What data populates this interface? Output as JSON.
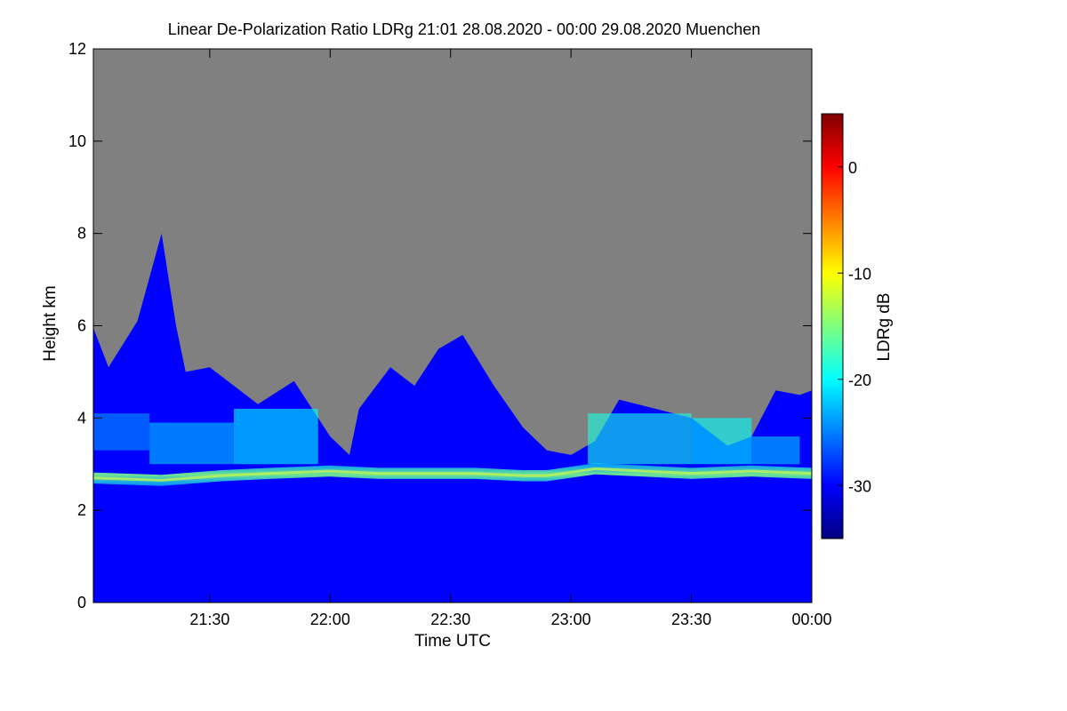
{
  "chart_data": {
    "type": "heatmap",
    "title": "Linear De-Polarization Ratio LDRg   21:01 28.08.2020 - 00:00 29.08.2020 Muenchen",
    "xlabel": "Time UTC",
    "ylabel": "Height km",
    "x_range_hours": [
      21.0167,
      24.0
    ],
    "y_range_km": [
      0,
      12
    ],
    "x_ticks": [
      {
        "hour": 21.5,
        "label": "21:30"
      },
      {
        "hour": 22.0,
        "label": "22:00"
      },
      {
        "hour": 22.5,
        "label": "22:30"
      },
      {
        "hour": 23.0,
        "label": "23:00"
      },
      {
        "hour": 23.5,
        "label": "23:30"
      },
      {
        "hour": 24.0,
        "label": "00:00"
      }
    ],
    "y_ticks": [
      {
        "value": 0,
        "label": "0"
      },
      {
        "value": 2,
        "label": "2"
      },
      {
        "value": 4,
        "label": "4"
      },
      {
        "value": 6,
        "label": "6"
      },
      {
        "value": 8,
        "label": "8"
      },
      {
        "value": 10,
        "label": "10"
      },
      {
        "value": 12,
        "label": "12"
      }
    ],
    "colorbar": {
      "label": "LDRg dB",
      "range_db": [
        -35,
        5
      ],
      "ticks": [
        {
          "value": 0,
          "label": "0"
        },
        {
          "value": -10,
          "label": "-10"
        },
        {
          "value": -20,
          "label": "-20"
        },
        {
          "value": -30,
          "label": "-30"
        }
      ],
      "colors": [
        "#00007f",
        "#0000ff",
        "#007fff",
        "#00ffff",
        "#7fff7f",
        "#ffff00",
        "#ff7f00",
        "#ff0000",
        "#7f0000"
      ]
    },
    "no_data_color": "#808080",
    "background_ldr_db": -30,
    "layer_ldr_db": -16,
    "cloud_top_km": [
      {
        "hour": 21.0167,
        "km": 5.95
      },
      {
        "hour": 21.08,
        "km": 5.1
      },
      {
        "hour": 21.2,
        "km": 6.1
      },
      {
        "hour": 21.3,
        "km": 8.0
      },
      {
        "hour": 21.36,
        "km": 6.0
      },
      {
        "hour": 21.4,
        "km": 5.0
      },
      {
        "hour": 21.5,
        "km": 5.1
      },
      {
        "hour": 21.6,
        "km": 4.7
      },
      {
        "hour": 21.7,
        "km": 4.3
      },
      {
        "hour": 21.85,
        "km": 4.8
      },
      {
        "hour": 22.0,
        "km": 3.6
      },
      {
        "hour": 22.08,
        "km": 3.2
      },
      {
        "hour": 22.12,
        "km": 4.2
      },
      {
        "hour": 22.25,
        "km": 5.1
      },
      {
        "hour": 22.35,
        "km": 4.7
      },
      {
        "hour": 22.45,
        "km": 5.5
      },
      {
        "hour": 22.55,
        "km": 5.8
      },
      {
        "hour": 22.68,
        "km": 4.7
      },
      {
        "hour": 22.8,
        "km": 3.8
      },
      {
        "hour": 22.9,
        "km": 3.3
      },
      {
        "hour": 23.0,
        "km": 3.2
      },
      {
        "hour": 23.1,
        "km": 3.5
      },
      {
        "hour": 23.2,
        "km": 4.4
      },
      {
        "hour": 23.35,
        "km": 4.2
      },
      {
        "hour": 23.5,
        "km": 4.0
      },
      {
        "hour": 23.65,
        "km": 3.4
      },
      {
        "hour": 23.75,
        "km": 3.6
      },
      {
        "hour": 23.85,
        "km": 4.6
      },
      {
        "hour": 23.95,
        "km": 4.5
      },
      {
        "hour": 24.0,
        "km": 4.6
      }
    ],
    "melting_layer_km": [
      {
        "hour": 21.0167,
        "km": 2.7
      },
      {
        "hour": 21.3,
        "km": 2.65
      },
      {
        "hour": 21.55,
        "km": 2.75
      },
      {
        "hour": 21.75,
        "km": 2.8
      },
      {
        "hour": 22.0,
        "km": 2.85
      },
      {
        "hour": 22.2,
        "km": 2.8
      },
      {
        "hour": 22.4,
        "km": 2.8
      },
      {
        "hour": 22.6,
        "km": 2.8
      },
      {
        "hour": 22.8,
        "km": 2.75
      },
      {
        "hour": 22.9,
        "km": 2.75
      },
      {
        "hour": 23.1,
        "km": 2.9
      },
      {
        "hour": 23.3,
        "km": 2.85
      },
      {
        "hour": 23.5,
        "km": 2.8
      },
      {
        "hour": 23.75,
        "km": 2.85
      },
      {
        "hour": 24.0,
        "km": 2.8
      }
    ],
    "enhanced_ldr_regions": [
      {
        "hours": [
          21.02,
          21.25
        ],
        "km": [
          3.3,
          4.1
        ],
        "ldr_db": -24
      },
      {
        "hours": [
          21.25,
          21.6
        ],
        "km": [
          3.0,
          3.9
        ],
        "ldr_db": -22
      },
      {
        "hours": [
          21.6,
          21.95
        ],
        "km": [
          3.0,
          4.2
        ],
        "ldr_db": -20
      },
      {
        "hours": [
          23.07,
          23.5
        ],
        "km": [
          3.0,
          4.1
        ],
        "ldr_db": -19
      },
      {
        "hours": [
          23.5,
          23.75
        ],
        "km": [
          3.0,
          4.0
        ],
        "ldr_db": -20
      },
      {
        "hours": [
          23.75,
          23.95
        ],
        "km": [
          3.0,
          3.6
        ],
        "ldr_db": -22
      }
    ]
  }
}
